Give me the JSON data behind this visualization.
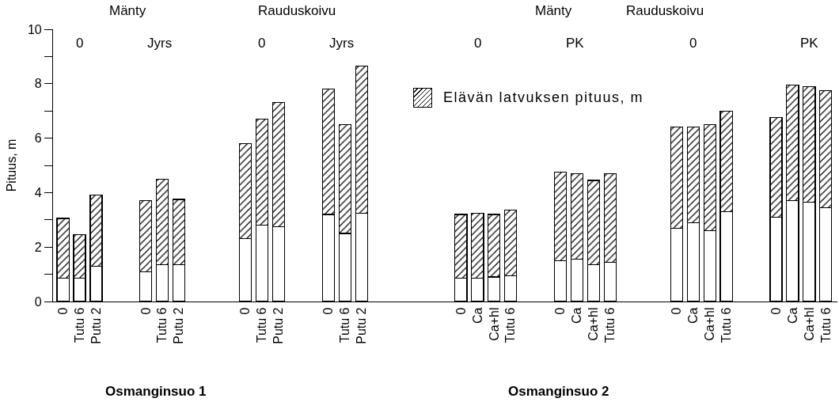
{
  "chart_data": {
    "type": "bar",
    "stacked": true,
    "ylabel": "Pituus, m",
    "categories": [
      "0",
      "Tutu 6",
      "Putu 2",
      null,
      null,
      "0",
      "Tutu 6",
      "Putu 2",
      null,
      null,
      null,
      "0",
      "Tutu 6",
      "Putu 2",
      null,
      null,
      "0",
      "Tutu 6",
      "Putu 2",
      null,
      null,
      null,
      null,
      null,
      "0",
      "Ca",
      "Ca+hl",
      "Tutu 6",
      null,
      null,
      "0",
      "Ca",
      "Ca+hl",
      "Tutu 6",
      null,
      null,
      null,
      "0",
      "Ca",
      "Ca+hl",
      "Tutu 6",
      null,
      null,
      "0",
      "Ca",
      "Ca+hl",
      "Tutu 6"
    ],
    "series": [
      {
        "color": "#ffffff",
        "values": [
          0.85,
          0.85,
          1.3,
          null,
          null,
          1.1,
          1.35,
          1.35,
          null,
          null,
          null,
          2.3,
          2.8,
          2.75,
          null,
          null,
          3.2,
          2.5,
          3.25,
          null,
          null,
          null,
          null,
          null,
          0.85,
          0.85,
          0.9,
          0.95,
          null,
          null,
          1.5,
          1.55,
          1.35,
          1.45,
          null,
          null,
          null,
          2.7,
          2.9,
          2.6,
          3.3,
          null,
          null,
          3.1,
          3.7,
          3.65,
          3.45
        ]
      },
      {
        "name": "Elävän latvuksen pituus, m",
        "color": "#000000",
        "values": [
          2.2,
          1.6,
          2.6,
          null,
          null,
          2.6,
          3.15,
          2.4,
          null,
          null,
          null,
          3.5,
          3.9,
          4.55,
          null,
          null,
          4.6,
          4.0,
          5.4,
          null,
          null,
          null,
          null,
          null,
          2.35,
          2.4,
          2.3,
          2.4,
          null,
          null,
          3.25,
          3.15,
          3.1,
          3.25,
          null,
          null,
          null,
          3.7,
          3.5,
          3.9,
          3.7,
          null,
          null,
          3.65,
          4.25,
          4.25,
          4.3
        ]
      }
    ],
    "ylim": [
      0,
      10
    ],
    "yticks": [
      0,
      {
        "value": 1,
        "label": null
      },
      2,
      {
        "value": 3,
        "label": null
      },
      4,
      {
        "value": 5,
        "label": null
      },
      6,
      {
        "value": 7,
        "label": null
      },
      8,
      {
        "value": 9,
        "label": null
      },
      10
    ],
    "grid": false,
    "legend": "top",
    "annotations": [
      "Mänty",
      "Rauduskoivu",
      "Mänty",
      "Rauduskoivu",
      "0",
      "Jyrs",
      "0",
      "Jyrs",
      "0",
      "PK",
      "0",
      "PK",
      "Osmanginsuo 1",
      "Osmanginsuo 2"
    ]
  }
}
